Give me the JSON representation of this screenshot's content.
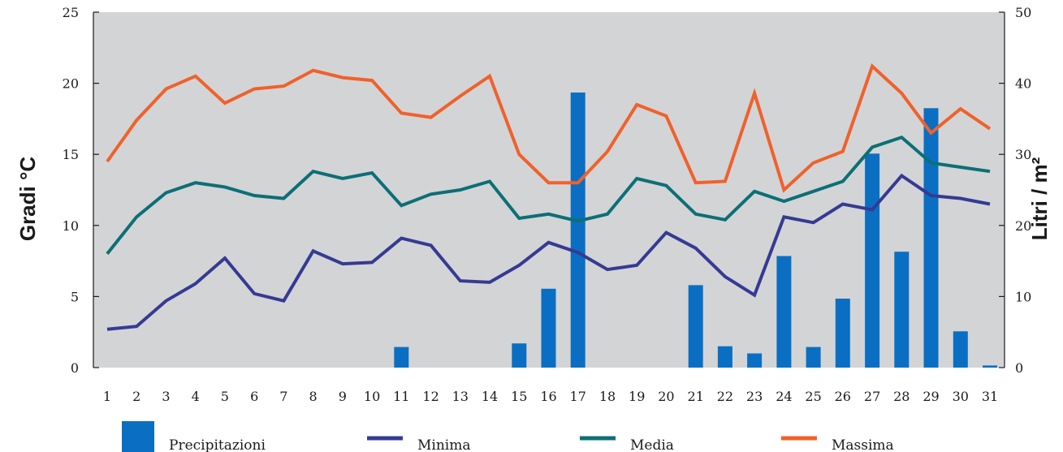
{
  "chart_data": {
    "type": "bar+line",
    "x": [
      "1",
      "2",
      "3",
      "4",
      "5",
      "6",
      "7",
      "8",
      "9",
      "10",
      "11",
      "12",
      "13",
      "14",
      "15",
      "16",
      "17",
      "18",
      "19",
      "20",
      "21",
      "22",
      "23",
      "24",
      "25",
      "26",
      "27",
      "28",
      "29",
      "30",
      "31"
    ],
    "ylabel_left": "Gradi °C",
    "ylabel_right": "Litri / m²",
    "ylim_left": [
      0,
      25
    ],
    "ylim_right": [
      0,
      50
    ],
    "yticks_left": [
      "0",
      "5",
      "10",
      "15",
      "20",
      "25"
    ],
    "yticks_right": [
      "0",
      "10",
      "20",
      "30",
      "40",
      "50"
    ],
    "bars": {
      "name": "Precipitazioni",
      "axis": "right",
      "color": "#0a6fc2",
      "values": [
        0,
        0,
        0,
        0,
        0,
        0,
        0,
        0,
        0,
        0,
        2.9,
        0,
        0,
        0,
        3.4,
        11.1,
        38.7,
        0,
        0,
        0,
        11.6,
        3.0,
        2.0,
        15.7,
        2.9,
        9.7,
        30.1,
        16.3,
        36.5,
        5.1,
        0.3
      ]
    },
    "series": [
      {
        "name": "Minima",
        "axis": "left",
        "color": "#353a93",
        "values": [
          2.7,
          2.9,
          4.7,
          5.9,
          7.7,
          5.2,
          4.7,
          8.2,
          7.3,
          7.4,
          9.1,
          8.6,
          6.1,
          6.0,
          7.2,
          8.8,
          8.1,
          6.9,
          7.2,
          9.5,
          8.4,
          6.4,
          5.1,
          10.6,
          10.2,
          11.5,
          11.1,
          13.5,
          12.1,
          11.9,
          11.5
        ]
      },
      {
        "name": "Media",
        "axis": "left",
        "color": "#0c6f76",
        "values": [
          8.0,
          10.6,
          12.3,
          13.0,
          12.7,
          12.1,
          11.9,
          13.8,
          13.3,
          13.7,
          11.4,
          12.2,
          12.5,
          13.1,
          10.5,
          10.8,
          10.3,
          10.8,
          13.3,
          12.8,
          10.8,
          10.4,
          12.4,
          11.7,
          12.4,
          13.1,
          15.5,
          16.2,
          14.4,
          14.1,
          13.8
        ]
      },
      {
        "name": "Massima",
        "axis": "left",
        "color": "#f0612b",
        "values": [
          14.5,
          17.4,
          19.6,
          20.5,
          18.6,
          19.6,
          19.8,
          20.9,
          20.4,
          20.2,
          17.9,
          17.6,
          19.1,
          20.5,
          15.0,
          13.0,
          13.0,
          15.2,
          18.5,
          17.7,
          13.0,
          13.1,
          19.3,
          12.5,
          14.4,
          15.2,
          21.2,
          19.3,
          16.5,
          18.2,
          16.8
        ]
      }
    ],
    "legend": {
      "placement": "bottom",
      "entries": [
        "Precipitazioni",
        "Minima",
        "Media",
        "Massima"
      ]
    },
    "grid": false,
    "plot_background": "#d3d4d6"
  }
}
